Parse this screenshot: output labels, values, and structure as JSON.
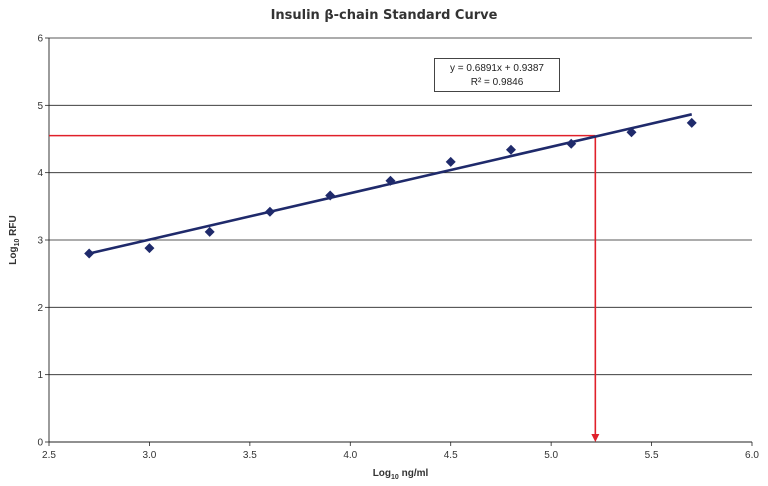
{
  "chart_data": {
    "type": "scatter",
    "title": "Insulin β-chain Standard Curve",
    "xlabel": "Log10 ng/ml",
    "ylabel": "Log10 RFU",
    "xlim": [
      2.5,
      6.0
    ],
    "ylim": [
      0,
      6
    ],
    "x_ticks": [
      "2.5",
      "3.0",
      "3.5",
      "4.0",
      "4.5",
      "5.0",
      "5.5",
      "6.0"
    ],
    "y_ticks": [
      "0",
      "1",
      "2",
      "3",
      "4",
      "5",
      "6"
    ],
    "grid": "horizontal",
    "series": [
      {
        "marker": "diamond",
        "color": "#1f2a6b",
        "x": [
          2.7,
          3.0,
          3.3,
          3.6,
          3.9,
          4.2,
          4.5,
          4.8,
          5.1,
          5.4,
          5.7
        ],
        "y": [
          2.8,
          2.88,
          3.12,
          3.42,
          3.66,
          3.88,
          4.16,
          4.34,
          4.43,
          4.6,
          4.74
        ]
      }
    ],
    "trendline": {
      "slope": 0.6891,
      "intercept": 0.9387,
      "x_range": [
        2.7,
        5.7
      ],
      "color": "#1f2a6b",
      "equation_text": "y = 0.6891x + 0.9387",
      "r2_text": "R² = 0.9846"
    },
    "annotation": {
      "color": "#e0202a",
      "y_value": 4.55,
      "x_value": 5.22
    }
  }
}
